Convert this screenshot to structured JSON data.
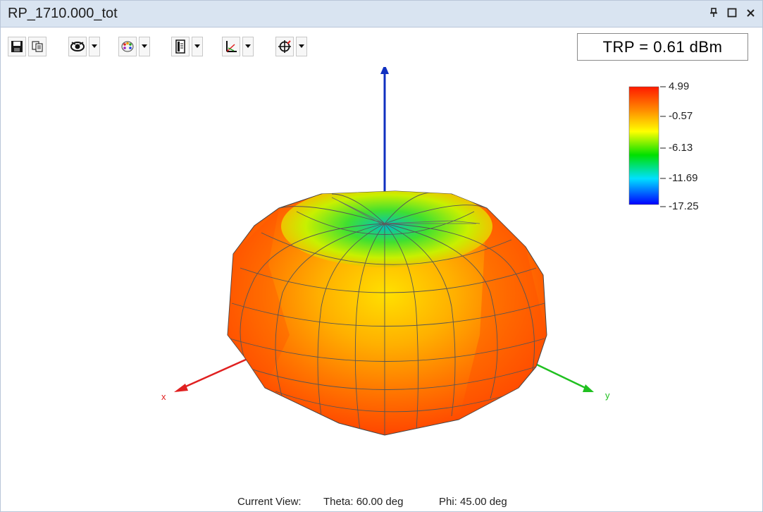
{
  "window": {
    "title": "RP_1710.000_tot",
    "pin_icon": "pin-icon",
    "maximize_icon": "maximize-icon",
    "close_icon": "close-icon"
  },
  "toolbar": {
    "buttons": [
      {
        "name": "save-icon"
      },
      {
        "name": "copy-icon"
      },
      {
        "name": "view-eye-icon",
        "dropdown": true
      },
      {
        "name": "color-palette-icon",
        "dropdown": true
      },
      {
        "name": "document-icon",
        "dropdown": true
      },
      {
        "name": "axis-icon",
        "dropdown": true
      },
      {
        "name": "crosshair-icon",
        "dropdown": true
      }
    ],
    "trp_label": "TRP = 0.61 dBm"
  },
  "legend": {
    "values": [
      "4.99",
      "-0.57",
      "-6.13",
      "-11.69",
      "-17.25"
    ],
    "colors": [
      "#ff2a00",
      "#ff8c00",
      "#ffff00",
      "#00e000",
      "#00e0ff",
      "#0000ff"
    ]
  },
  "axes": {
    "x_label": "x",
    "y_label": "y",
    "x_color": "#e02020",
    "y_color": "#20c020",
    "z_color": "#1030c0"
  },
  "status": {
    "view_label": "Current View:",
    "theta": "Theta: 60.00 deg",
    "phi": "Phi: 45.00 deg"
  }
}
